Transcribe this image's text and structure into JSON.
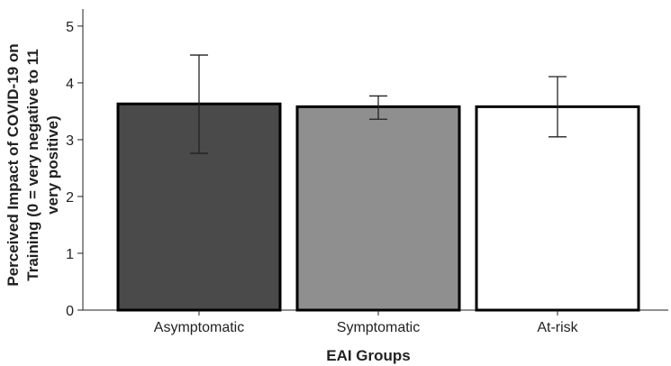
{
  "chart_data": {
    "type": "bar",
    "categories": [
      "Asymptomatic",
      "Symptomatic",
      "At-risk"
    ],
    "values": [
      3.63,
      3.58,
      3.58
    ],
    "error_low": [
      2.76,
      3.36,
      3.05
    ],
    "error_high": [
      4.49,
      3.77,
      4.11
    ],
    "bar_colors": [
      "#4a4a4a",
      "#8f8f8f",
      "#ffffff"
    ],
    "title": "",
    "xlabel": "EAI Groups",
    "ylabel_lines": [
      "Perceived Impact of COVID-19 on",
      "Training   (0 = very negative to 11",
      "very positive)"
    ],
    "ylim": [
      0,
      5.3
    ],
    "yticks": [
      0,
      1,
      2,
      3,
      4,
      5
    ],
    "grid": false,
    "legend": "none"
  }
}
